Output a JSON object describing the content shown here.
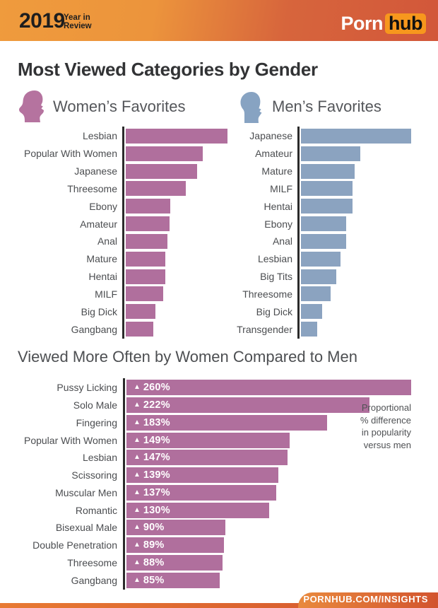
{
  "header": {
    "year": "2019",
    "tagline": "Year in\nReview",
    "logo": {
      "part1": "Porn",
      "part2": "hub"
    }
  },
  "page_title": "Most Viewed Categories by Gender",
  "sections": {
    "women": {
      "title": "Women’s Favorites"
    },
    "men": {
      "title": "Men’s Favorites"
    },
    "comparison": {
      "title": "Viewed More Often by Women Compared to Men",
      "annotation": "Proportional\n% difference\nin popularity\nversus men"
    }
  },
  "icons": {
    "triangle_up_glyph": "▲",
    "woman_icon": "woman-profile-silhouette",
    "man_icon": "man-profile-silhouette"
  },
  "colors": {
    "women_bar": "#b06f9d",
    "men_bar": "#8ba3c0",
    "axis": "#2b2b2b",
    "header_orange_left": "#ef9b3d",
    "header_orange_right": "#d2573a",
    "hub_badge_orange": "#f7971d",
    "footer_orange_left": "#e87a33",
    "footer_orange_right": "#d2532e",
    "title_text": "#323335",
    "label_text": "#4b4d50"
  },
  "footer": {
    "url": "PORNHUB.COM/INSIGHTS"
  },
  "chart_data": [
    {
      "id": "women_favorites",
      "type": "bar",
      "orientation": "horizontal",
      "title": "Women’s Favorites",
      "categories": [
        "Lesbian",
        "Popular With Women",
        "Japanese",
        "Threesome",
        "Ebony",
        "Amateur",
        "Anal",
        "Mature",
        "Hentai",
        "MILF",
        "Big Dick",
        "Gangbang"
      ],
      "values": [
        100,
        76,
        70,
        59,
        44,
        43,
        41,
        39,
        39,
        37,
        29,
        27
      ],
      "value_note": "relative popularity estimated from bar lengths, longest bar = 100",
      "bar_color": "#b06f9d",
      "grid": false,
      "legend": false
    },
    {
      "id": "men_favorites",
      "type": "bar",
      "orientation": "horizontal",
      "title": "Men’s Favorites",
      "categories": [
        "Japanese",
        "Amateur",
        "Mature",
        "MILF",
        "Hentai",
        "Ebony",
        "Anal",
        "Lesbian",
        "Big Tits",
        "Threesome",
        "Big Dick",
        "Transgender"
      ],
      "values": [
        100,
        54,
        49,
        47,
        47,
        41,
        41,
        36,
        32,
        27,
        19,
        15
      ],
      "value_note": "relative popularity estimated from bar lengths, longest bar = 100",
      "bar_color": "#8ba3c0",
      "grid": false,
      "legend": false
    },
    {
      "id": "women_vs_men",
      "type": "bar",
      "orientation": "horizontal",
      "title": "Viewed More Often by Women Compared to Men",
      "categories": [
        "Pussy Licking",
        "Solo Male",
        "Fingering",
        "Popular With Women",
        "Lesbian",
        "Scissoring",
        "Muscular Men",
        "Romantic",
        "Bisexual Male",
        "Double Penetration",
        "Threesome",
        "Gangbang"
      ],
      "values": [
        260,
        222,
        183,
        149,
        147,
        139,
        137,
        130,
        90,
        89,
        88,
        85
      ],
      "bar_labels": [
        "260%",
        "222%",
        "183%",
        "149%",
        "147%",
        "139%",
        "137%",
        "130%",
        "90%",
        "89%",
        "88%",
        "85%"
      ],
      "unit": "% more viewed by women versus men",
      "annotation": "Proportional % difference in popularity versus men",
      "bar_color": "#b06f9d",
      "grid": false,
      "legend": false
    }
  ]
}
